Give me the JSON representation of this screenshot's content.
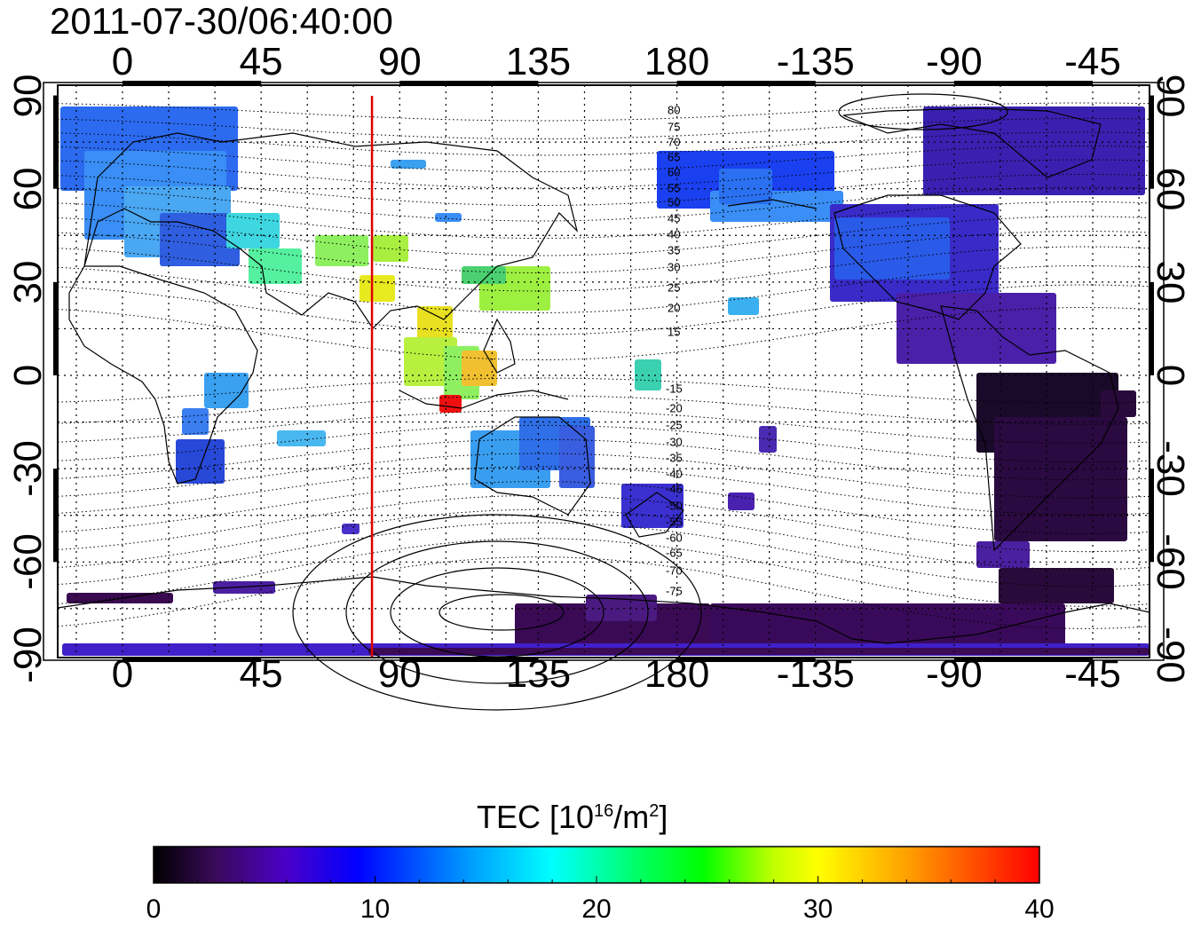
{
  "title": "2011-07-30/06:40:00",
  "map": {
    "top_lon_labels": [
      "0",
      "45",
      "90",
      "135",
      "180",
      "-135",
      "-90",
      "-45"
    ],
    "bottom_lon_labels": [
      "0",
      "45",
      "90",
      "135",
      "180",
      "-135",
      "-90",
      "-45"
    ],
    "left_lat_labels": [
      "90",
      "60",
      "30",
      "0",
      "-30",
      "-60",
      "-90"
    ],
    "right_lat_labels": [
      "90",
      "60",
      "30",
      "0",
      "-30",
      "-60",
      "-90"
    ],
    "magnetic_lat_labels_north": [
      "80",
      "75",
      "70",
      "65",
      "60",
      "55",
      "50",
      "45",
      "40",
      "35",
      "30",
      "25",
      "20",
      "15"
    ],
    "magnetic_lat_labels_south": [
      "-15",
      "-20",
      "-25",
      "-30",
      "-35",
      "-40",
      "-45",
      "-50",
      "-55",
      "-60",
      "-65",
      "-70",
      "-75"
    ],
    "meridian_marker_lon": 81,
    "marker_color": "#e00000"
  },
  "colorbar": {
    "label_main": "TEC  [10",
    "label_exp": "16",
    "label_unit": "/m",
    "label_exp2": "2",
    "label_end": "]",
    "ticks": [
      "0",
      "10",
      "20",
      "30",
      "40"
    ],
    "range": [
      0,
      40
    ],
    "colors": [
      "#000000",
      "#3a0a5a",
      "#4b00c8",
      "#0000ff",
      "#00a0ff",
      "#00ffff",
      "#00ff60",
      "#00ff00",
      "#c0ff00",
      "#ffff00",
      "#ffa000",
      "#ff0000"
    ]
  }
}
